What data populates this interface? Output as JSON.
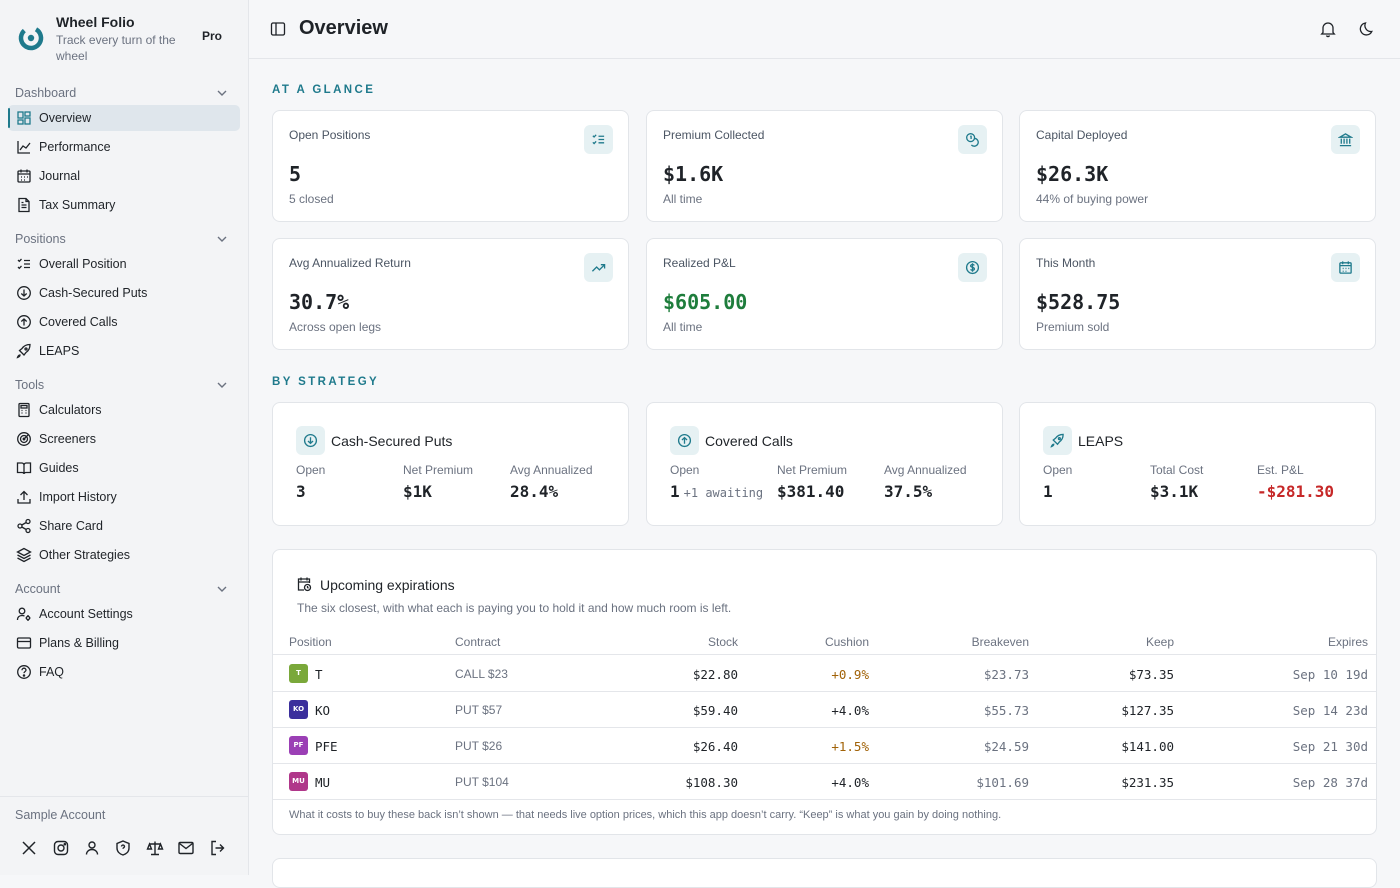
{
  "brand": {
    "name": "Wheel Folio",
    "tagline": "Track every turn of the wheel",
    "plan": "Pro",
    "accent": "#1f7a8c"
  },
  "sidebar": {
    "groups": [
      {
        "title": "Dashboard",
        "items": [
          {
            "label": "Overview",
            "icon": "grid-icon",
            "active": true
          },
          {
            "label": "Performance",
            "icon": "line-chart-icon"
          },
          {
            "label": "Journal",
            "icon": "calendar-icon"
          },
          {
            "label": "Tax Summary",
            "icon": "file-text-icon"
          }
        ]
      },
      {
        "title": "Positions",
        "items": [
          {
            "label": "Overall Position",
            "icon": "list-checks-icon"
          },
          {
            "label": "Cash-Secured Puts",
            "icon": "arrow-down-circle-icon"
          },
          {
            "label": "Covered Calls",
            "icon": "arrow-up-circle-icon"
          },
          {
            "label": "LEAPS",
            "icon": "rocket-icon"
          }
        ]
      },
      {
        "title": "Tools",
        "items": [
          {
            "label": "Calculators",
            "icon": "calculator-icon"
          },
          {
            "label": "Screeners",
            "icon": "radar-icon"
          },
          {
            "label": "Guides",
            "icon": "book-open-icon"
          },
          {
            "label": "Import History",
            "icon": "upload-icon"
          },
          {
            "label": "Share Card",
            "icon": "share-icon"
          },
          {
            "label": "Other Strategies",
            "icon": "layers-icon"
          }
        ]
      },
      {
        "title": "Account",
        "items": [
          {
            "label": "Account Settings",
            "icon": "user-cog-icon"
          },
          {
            "label": "Plans & Billing",
            "icon": "credit-card-icon"
          },
          {
            "label": "FAQ",
            "icon": "help-circle-icon"
          }
        ]
      }
    ],
    "footer": {
      "account_label": "Sample Account"
    }
  },
  "header": {
    "title": "Overview"
  },
  "glance": {
    "label": "AT A GLANCE",
    "cards": [
      {
        "title": "Open Positions",
        "value": "5",
        "sub": "5 closed",
        "icon": "list-checks-icon"
      },
      {
        "title": "Premium Collected",
        "value": "$1.6K",
        "sub": "All time",
        "icon": "coins-icon"
      },
      {
        "title": "Capital Deployed",
        "value": "$26.3K",
        "sub": "44% of buying power",
        "icon": "landmark-icon"
      },
      {
        "title": "Avg Annualized Return",
        "value": "30.7%",
        "sub": "Across open legs",
        "icon": "trending-up-icon"
      },
      {
        "title": "Realized P&L",
        "value": "$605.00",
        "sub": "All time",
        "icon": "dollar-circle-icon",
        "color": "#1e7d3c"
      },
      {
        "title": "This Month",
        "value": "$528.75",
        "sub": "Premium sold",
        "icon": "calendar-icon"
      }
    ]
  },
  "strategy": {
    "label": "BY STRATEGY",
    "cards": [
      {
        "title": "Cash-Secured Puts",
        "icon": "arrow-down-circle-icon",
        "metrics": [
          {
            "label": "Open",
            "value": "3"
          },
          {
            "label": "Net Premium",
            "value": "$1K"
          },
          {
            "label": "Avg Annualized",
            "value": "28.4%"
          }
        ]
      },
      {
        "title": "Covered Calls",
        "icon": "arrow-up-circle-icon",
        "metrics": [
          {
            "label": "Open",
            "value": "1",
            "extra": "+1 awaiting"
          },
          {
            "label": "Net Premium",
            "value": "$381.40"
          },
          {
            "label": "Avg Annualized",
            "value": "37.5%"
          }
        ]
      },
      {
        "title": "LEAPS",
        "icon": "rocket-icon",
        "metrics": [
          {
            "label": "Open",
            "value": "1"
          },
          {
            "label": "Total Cost",
            "value": "$3.1K"
          },
          {
            "label": "Est. P&L",
            "value": "-$281.30",
            "color": "#c62828"
          }
        ]
      }
    ]
  },
  "expirations": {
    "title": "Upcoming expirations",
    "description": "The six closest, with what each is paying you to hold it and how much room is left.",
    "columns": [
      "Position",
      "Contract",
      "Stock",
      "Cushion",
      "Breakeven",
      "Keep",
      "Expires"
    ],
    "rows": [
      {
        "badge": "T",
        "badge_color": "#7aa83a",
        "symbol": "T",
        "contract": "CALL $23",
        "stock": "$22.80",
        "cushion": "+0.9%",
        "cushion_warn": true,
        "breakeven": "$23.73",
        "keep": "$73.35",
        "expires": "Sep 10",
        "days": "19d"
      },
      {
        "badge": "KO",
        "badge_color": "#3b2f9c",
        "symbol": "KO",
        "contract": "PUT $57",
        "stock": "$59.40",
        "cushion": "+4.0%",
        "cushion_warn": false,
        "breakeven": "$55.73",
        "keep": "$127.35",
        "expires": "Sep 14",
        "days": "23d"
      },
      {
        "badge": "PF",
        "badge_color": "#9b3fb5",
        "symbol": "PFE",
        "contract": "PUT $26",
        "stock": "$26.40",
        "cushion": "+1.5%",
        "cushion_warn": true,
        "breakeven": "$24.59",
        "keep": "$141.00",
        "expires": "Sep 21",
        "days": "30d"
      },
      {
        "badge": "MU",
        "badge_color": "#b0378a",
        "symbol": "MU",
        "contract": "PUT $104",
        "stock": "$108.30",
        "cushion": "+4.0%",
        "cushion_warn": false,
        "breakeven": "$101.69",
        "keep": "$231.35",
        "expires": "Sep 28",
        "days": "37d"
      }
    ],
    "footnote": "What it costs to buy these back isn’t shown — that needs live option prices, which this app doesn’t carry. “Keep” is what you gain by doing nothing."
  }
}
